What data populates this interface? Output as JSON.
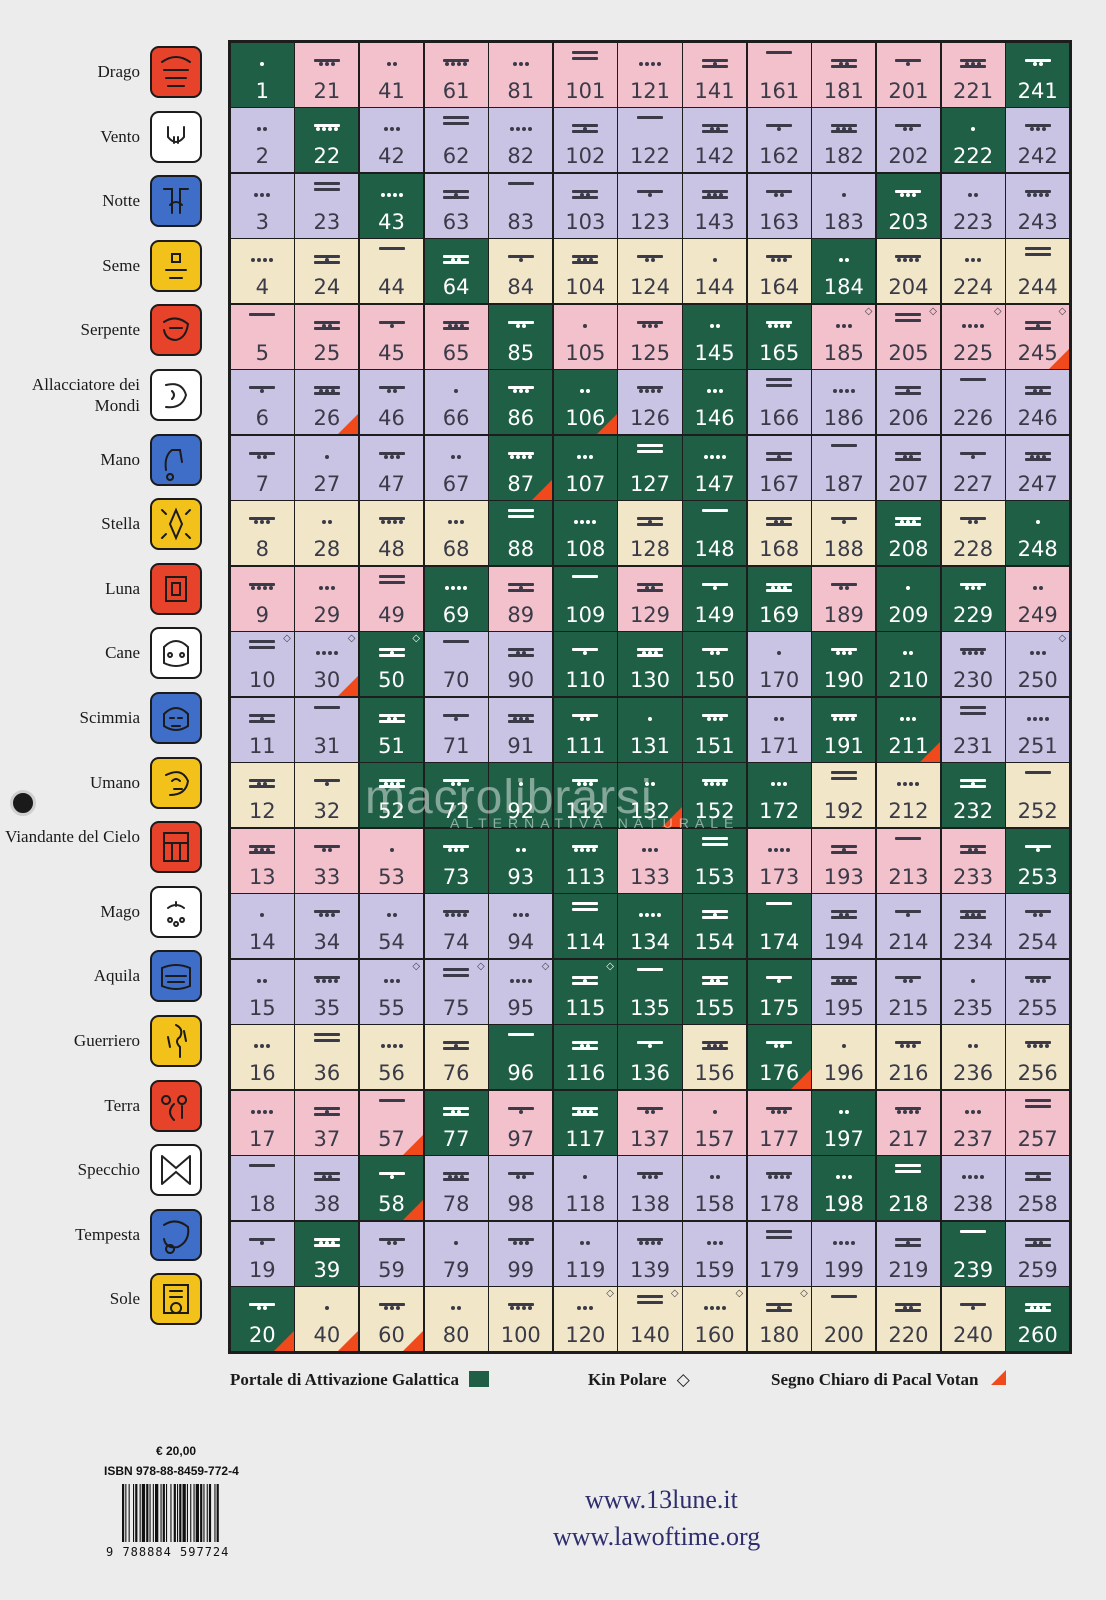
{
  "signs": [
    {
      "label": "Drago",
      "color": "#e7432b",
      "icon": "red-dragon-glyph"
    },
    {
      "label": "Vento",
      "color": "#ffffff",
      "icon": "white-wind-glyph"
    },
    {
      "label": "Notte",
      "color": "#3f6ec9",
      "icon": "blue-night-glyph"
    },
    {
      "label": "Seme",
      "color": "#f2c21a",
      "icon": "yellow-seed-glyph"
    },
    {
      "label": "Serpente",
      "color": "#e7432b",
      "icon": "red-serpent-glyph"
    },
    {
      "label": "Allacciatore dei Mondi",
      "color": "#ffffff",
      "icon": "white-worldbridger-glyph"
    },
    {
      "label": "Mano",
      "color": "#3f6ec9",
      "icon": "blue-hand-glyph"
    },
    {
      "label": "Stella",
      "color": "#f2c21a",
      "icon": "yellow-star-glyph"
    },
    {
      "label": "Luna",
      "color": "#e7432b",
      "icon": "red-moon-glyph"
    },
    {
      "label": "Cane",
      "color": "#ffffff",
      "icon": "white-dog-glyph"
    },
    {
      "label": "Scimmia",
      "color": "#3f6ec9",
      "icon": "blue-monkey-glyph"
    },
    {
      "label": "Umano",
      "color": "#f2c21a",
      "icon": "yellow-human-glyph"
    },
    {
      "label": "Viandante del Cielo",
      "color": "#e7432b",
      "icon": "red-skywalker-glyph"
    },
    {
      "label": "Mago",
      "color": "#ffffff",
      "icon": "white-wizard-glyph"
    },
    {
      "label": "Aquila",
      "color": "#3f6ec9",
      "icon": "blue-eagle-glyph"
    },
    {
      "label": "Guerriero",
      "color": "#f2c21a",
      "icon": "yellow-warrior-glyph"
    },
    {
      "label": "Terra",
      "color": "#e7432b",
      "icon": "red-earth-glyph"
    },
    {
      "label": "Specchio",
      "color": "#ffffff",
      "icon": "white-mirror-glyph"
    },
    {
      "label": "Tempesta",
      "color": "#3f6ec9",
      "icon": "blue-storm-glyph"
    },
    {
      "label": "Sole",
      "color": "#f2c21a",
      "icon": "yellow-sun-glyph"
    }
  ],
  "colors": {
    "pink": "#f2c1cc",
    "lavender": "#c9c4e3",
    "cream": "#f1e7c8",
    "portal_green": "#1f5f46",
    "pacal_mark": "#f04a1c"
  },
  "grid": {
    "columns": 13,
    "rows": 20,
    "row_colors": [
      "pink",
      "lavender",
      "lavender",
      "cream",
      "pink",
      "lavender",
      "lavender",
      "cream",
      "pink",
      "lavender",
      "lavender",
      "cream",
      "pink",
      "lavender",
      "lavender",
      "cream",
      "pink",
      "lavender",
      "lavender",
      "cream"
    ],
    "portal_cells": [
      1,
      22,
      43,
      64,
      85,
      106,
      127,
      148,
      169,
      190,
      211,
      232,
      253,
      20,
      39,
      58,
      77,
      96,
      115,
      134,
      153,
      172,
      191,
      210,
      229,
      248,
      241,
      222,
      203,
      184,
      165,
      146,
      107,
      88,
      69,
      50,
      51,
      52,
      72,
      73,
      92,
      93,
      112,
      113,
      114,
      152,
      154,
      155,
      174,
      175,
      176,
      218,
      239,
      260,
      145,
      116,
      117,
      130,
      131,
      132,
      135,
      136,
      197,
      198,
      208,
      209,
      151,
      150,
      149,
      147,
      108,
      109,
      110,
      111,
      87,
      86
    ],
    "polar_kin": [
      10,
      30,
      50,
      55,
      75,
      95,
      115,
      120,
      140,
      160,
      180,
      185,
      205,
      225,
      245,
      250
    ],
    "pacal_votan": [
      20,
      26,
      30,
      40,
      57,
      58,
      60,
      87,
      106,
      132,
      176,
      211,
      245
    ]
  },
  "legend": {
    "portal": "Portale di Attivazione Galattica",
    "polar": "Kin Polare",
    "pacal": "Segno Chiaro di Pacal Votan",
    "diamond_glyph": "◇"
  },
  "back_cover": {
    "price": "€ 20,00",
    "isbn": "ISBN 978-88-8459-772-4",
    "barcode_number": "9 788884 597724",
    "url_1": "www.13lune.it",
    "url_2": "www.lawoftime.org"
  },
  "watermark": {
    "brand": "macrolibrarsi",
    "tagline": "ALTERNATIVA NATURALE"
  }
}
